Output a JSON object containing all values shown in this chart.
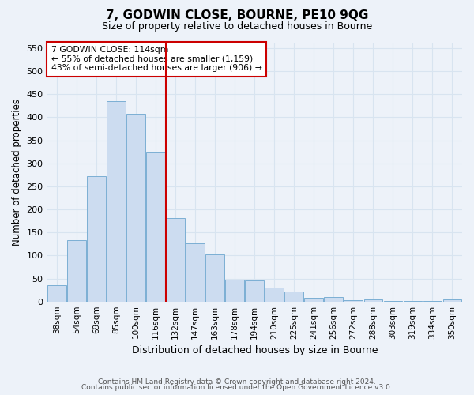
{
  "title": "7, GODWIN CLOSE, BOURNE, PE10 9QG",
  "subtitle": "Size of property relative to detached houses in Bourne",
  "xlabel": "Distribution of detached houses by size in Bourne",
  "ylabel": "Number of detached properties",
  "bar_labels": [
    "38sqm",
    "54sqm",
    "69sqm",
    "85sqm",
    "100sqm",
    "116sqm",
    "132sqm",
    "147sqm",
    "163sqm",
    "178sqm",
    "194sqm",
    "210sqm",
    "225sqm",
    "241sqm",
    "256sqm",
    "272sqm",
    "288sqm",
    "303sqm",
    "319sqm",
    "334sqm",
    "350sqm"
  ],
  "bar_values": [
    35,
    133,
    272,
    435,
    407,
    323,
    182,
    126,
    103,
    47,
    46,
    30,
    21,
    8,
    9,
    3,
    5,
    2,
    2,
    1,
    4
  ],
  "bar_color": "#ccdcf0",
  "bar_edge_color": "#7bafd4",
  "vline_x": 5.5,
  "vline_color": "#cc0000",
  "annotation_title": "7 GODWIN CLOSE: 114sqm",
  "annotation_line1": "← 55% of detached houses are smaller (1,159)",
  "annotation_line2": "43% of semi-detached houses are larger (906) →",
  "annotation_box_color": "#cc0000",
  "ylim": [
    0,
    560
  ],
  "yticks": [
    0,
    50,
    100,
    150,
    200,
    250,
    300,
    350,
    400,
    450,
    500,
    550
  ],
  "footer1": "Contains HM Land Registry data © Crown copyright and database right 2024.",
  "footer2": "Contains public sector information licensed under the Open Government Licence v3.0.",
  "background_color": "#edf2f9",
  "grid_color": "#d8e4f0",
  "title_fontsize": 11,
  "subtitle_fontsize": 9
}
